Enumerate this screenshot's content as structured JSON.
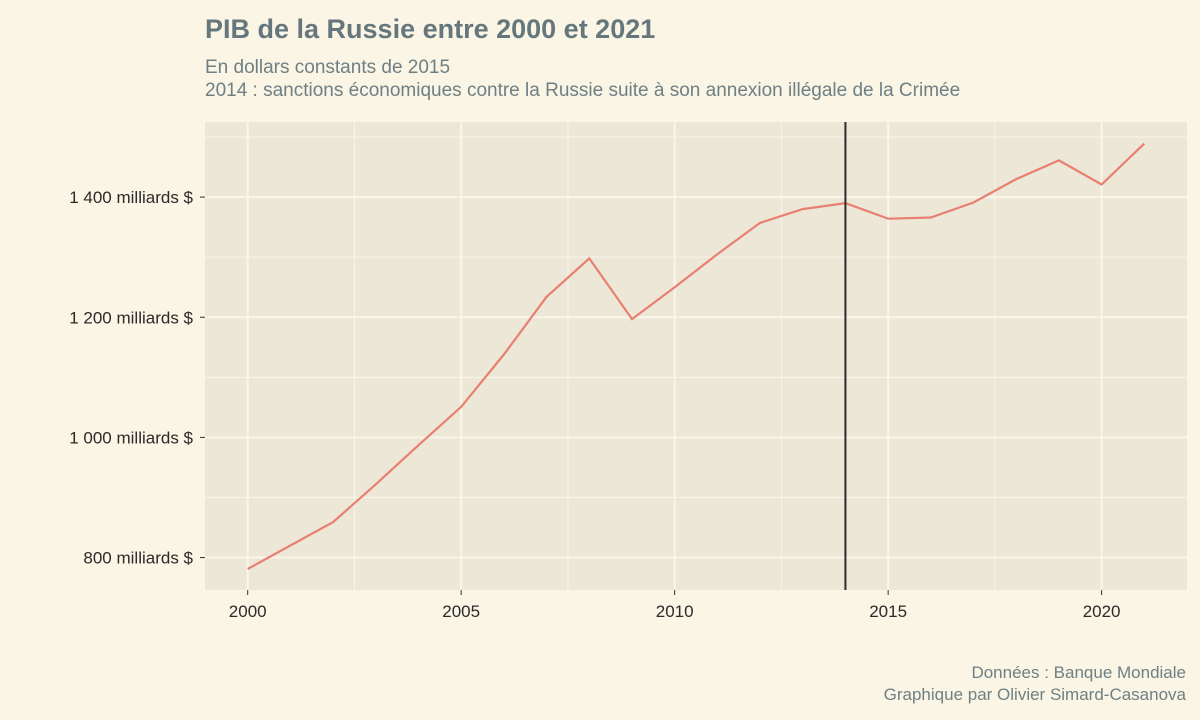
{
  "header": {
    "title": "PIB de la Russie entre 2000 et 2021",
    "subtitle_1": "En dollars constants de 2015",
    "subtitle_2": "2014 : sanctions économiques contre la Russie suite à son annexion illégale de la Crimée"
  },
  "footer": {
    "source": "Données : Banque Mondiale",
    "credit": "Graphique par Olivier Simard-Casanova"
  },
  "colors": {
    "background": "#faf5e4",
    "panel": "#ede7d7",
    "grid": "#faf6ea",
    "line": "#e97f70",
    "vline": "#2b2b2b",
    "title": "#65777c"
  },
  "chart_data": {
    "type": "line",
    "title": "PIB de la Russie entre 2000 et 2021",
    "xlabel": "",
    "ylabel": "",
    "xlim": [
      1999,
      2022
    ],
    "ylim": [
      746,
      1525
    ],
    "x_ticks": [
      2000,
      2005,
      2010,
      2015,
      2020
    ],
    "y_ticks": [
      {
        "value": 800,
        "label": "800 milliards $"
      },
      {
        "value": 1000,
        "label": "1 000 milliards $"
      },
      {
        "value": 1200,
        "label": "1 200 milliards $"
      },
      {
        "value": 1400,
        "label": "1 400 milliards $"
      }
    ],
    "grid": true,
    "vline": {
      "x": 2014
    },
    "series": [
      {
        "name": "PIB",
        "x": [
          2000,
          2001,
          2002,
          2003,
          2004,
          2005,
          2006,
          2007,
          2008,
          2009,
          2010,
          2011,
          2012,
          2013,
          2014,
          2015,
          2016,
          2017,
          2018,
          2019,
          2020,
          2021
        ],
        "values": [
          781,
          820,
          859,
          922,
          987,
          1051,
          1138,
          1234,
          1298,
          1197,
          1250,
          1305,
          1357,
          1380,
          1390,
          1364,
          1366,
          1391,
          1430,
          1461,
          1421,
          1489
        ]
      }
    ]
  }
}
